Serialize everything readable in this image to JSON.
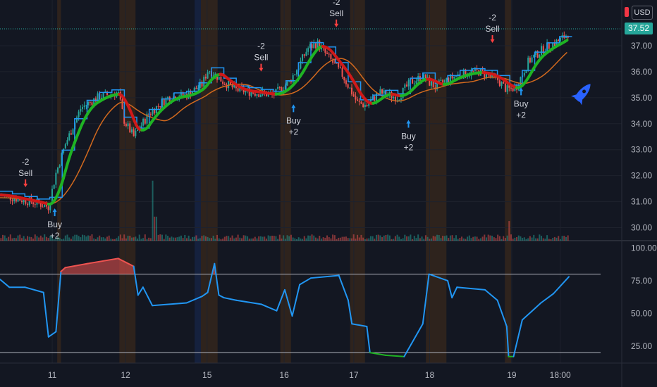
{
  "currency": "USD",
  "last_price": "37.52",
  "chart_data": {
    "type": "candlestick",
    "price_axis": {
      "ticks": [
        "37.00",
        "36.00",
        "35.00",
        "34.00",
        "33.00",
        "32.00",
        "31.00",
        "30.00"
      ],
      "values": [
        37,
        36,
        35,
        34,
        33,
        32,
        31,
        30
      ],
      "range": [
        29.5,
        38.0
      ]
    },
    "oscillator_axis": {
      "ticks": [
        "100.00",
        "75.00",
        "50.00",
        "25.00"
      ],
      "values": [
        100,
        75,
        50,
        25
      ],
      "range": [
        12,
        104
      ],
      "upper_band": 80,
      "lower_band": 20
    },
    "x_axis": {
      "ticks": [
        "11",
        "12",
        "15",
        "16",
        "17",
        "18",
        "19",
        "18:00"
      ],
      "positions": [
        0.084,
        0.202,
        0.333,
        0.457,
        0.569,
        0.691,
        0.823,
        0.901
      ]
    },
    "signals": [
      {
        "text_top": "-2",
        "text_bottom": "Sell",
        "side": "sell",
        "x": 0.041,
        "price": 31.45
      },
      {
        "text_top": "Buy",
        "text_bottom": "+2",
        "side": "buy",
        "x": 0.088,
        "price": 30.85
      },
      {
        "text_top": "-2",
        "text_bottom": "Sell",
        "side": "sell",
        "x": 0.42,
        "price": 35.9
      },
      {
        "text_top": "Buy",
        "text_bottom": "+2",
        "side": "buy",
        "x": 0.472,
        "price": 34.85
      },
      {
        "text_top": "-2",
        "text_bottom": "Sell",
        "side": "sell",
        "x": 0.541,
        "price": 37.6
      },
      {
        "text_top": "Buy",
        "text_bottom": "+2",
        "side": "buy",
        "x": 0.657,
        "price": 34.25
      },
      {
        "text_top": "-2",
        "text_bottom": "Sell",
        "side": "sell",
        "x": 0.792,
        "price": 37.0
      },
      {
        "text_top": "Buy",
        "text_bottom": "+2",
        "side": "buy",
        "x": 0.838,
        "price": 35.5
      }
    ],
    "price_path": [
      [
        0,
        31.25
      ],
      [
        0.03,
        31.1
      ],
      [
        0.06,
        30.95
      ],
      [
        0.078,
        30.8
      ],
      [
        0.09,
        32.1
      ],
      [
        0.105,
        33.2
      ],
      [
        0.13,
        34.6
      ],
      [
        0.16,
        35.05
      ],
      [
        0.19,
        35.2
      ],
      [
        0.2,
        34.1
      ],
      [
        0.215,
        33.5
      ],
      [
        0.24,
        34.4
      ],
      [
        0.27,
        35.0
      ],
      [
        0.3,
        35.1
      ],
      [
        0.325,
        35.5
      ],
      [
        0.335,
        36.1
      ],
      [
        0.36,
        35.6
      ],
      [
        0.38,
        35.3
      ],
      [
        0.41,
        35.2
      ],
      [
        0.44,
        35.1
      ],
      [
        0.465,
        35.6
      ],
      [
        0.48,
        36.2
      ],
      [
        0.495,
        36.9
      ],
      [
        0.51,
        37.1
      ],
      [
        0.53,
        36.5
      ],
      [
        0.55,
        35.9
      ],
      [
        0.575,
        34.8
      ],
      [
        0.59,
        34.7
      ],
      [
        0.61,
        35.2
      ],
      [
        0.64,
        35.0
      ],
      [
        0.66,
        35.6
      ],
      [
        0.68,
        35.8
      ],
      [
        0.7,
        35.4
      ],
      [
        0.72,
        35.7
      ],
      [
        0.74,
        35.9
      ],
      [
        0.77,
        36.0
      ],
      [
        0.8,
        35.7
      ],
      [
        0.815,
        35.3
      ],
      [
        0.83,
        35.4
      ],
      [
        0.85,
        36.4
      ],
      [
        0.875,
        36.9
      ],
      [
        0.9,
        37.2
      ],
      [
        0.915,
        37.5
      ]
    ],
    "volume_spikes": [
      [
        0.245,
        0.55
      ],
      [
        0.25,
        0.22
      ],
      [
        0.82,
        0.18
      ]
    ],
    "oscillator_path": [
      [
        0,
        76
      ],
      [
        0.015,
        70
      ],
      [
        0.04,
        70
      ],
      [
        0.07,
        66
      ],
      [
        0.078,
        32
      ],
      [
        0.09,
        36
      ],
      [
        0.098,
        82
      ],
      [
        0.105,
        85
      ],
      [
        0.14,
        88
      ],
      [
        0.19,
        92
      ],
      [
        0.215,
        86
      ],
      [
        0.222,
        64
      ],
      [
        0.23,
        70
      ],
      [
        0.245,
        56
      ],
      [
        0.3,
        58
      ],
      [
        0.325,
        63
      ],
      [
        0.334,
        66
      ],
      [
        0.345,
        88
      ],
      [
        0.352,
        64
      ],
      [
        0.36,
        62
      ],
      [
        0.38,
        60
      ],
      [
        0.42,
        57
      ],
      [
        0.445,
        52
      ],
      [
        0.458,
        68
      ],
      [
        0.47,
        48
      ],
      [
        0.482,
        72
      ],
      [
        0.5,
        77
      ],
      [
        0.545,
        79
      ],
      [
        0.56,
        60
      ],
      [
        0.566,
        42
      ],
      [
        0.59,
        40
      ],
      [
        0.595,
        20
      ],
      [
        0.62,
        18
      ],
      [
        0.65,
        17
      ],
      [
        0.68,
        42
      ],
      [
        0.69,
        80
      ],
      [
        0.72,
        75
      ],
      [
        0.727,
        62
      ],
      [
        0.735,
        70
      ],
      [
        0.78,
        68
      ],
      [
        0.8,
        60
      ],
      [
        0.815,
        40
      ],
      [
        0.818,
        17
      ],
      [
        0.826,
        17
      ],
      [
        0.84,
        45
      ],
      [
        0.87,
        58
      ],
      [
        0.89,
        65
      ],
      [
        0.915,
        78
      ]
    ],
    "session_bands": [
      [
        0.092,
        0.098,
        "orange"
      ],
      [
        0.192,
        0.218,
        "orange"
      ],
      [
        0.313,
        0.323,
        "blue"
      ],
      [
        0.323,
        0.35,
        "orange"
      ],
      [
        0.451,
        0.468,
        "orange"
      ],
      [
        0.563,
        0.587,
        "orange"
      ],
      [
        0.685,
        0.718,
        "orange"
      ],
      [
        0.812,
        0.822,
        "orange"
      ]
    ]
  }
}
